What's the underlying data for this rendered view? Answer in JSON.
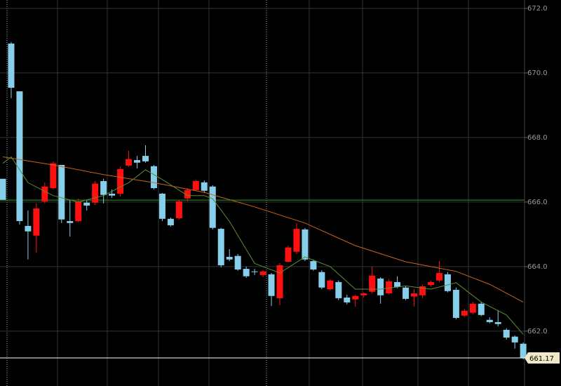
{
  "chart_data": {
    "type": "candlestick",
    "open": [
      666.72,
      670.91,
      669.43,
      665.26,
      664.96,
      666.02,
      666.43,
      667.15,
      665.41,
      665.41,
      665.98,
      665.98,
      666.65,
      666.26,
      666.26,
      667.13,
      667.3,
      667.43,
      667.11,
      666.26,
      665.48,
      665.5,
      666.11,
      666.37,
      666.61,
      666.48,
      665.17,
      664.3,
      664.33,
      663.93,
      663.85,
      663.74,
      663.76,
      663.02,
      664.15,
      664.46,
      665.15,
      664.17,
      663.83,
      663.3,
      663.52,
      663.04,
      662.98,
      663.11,
      663.22,
      663.63,
      663.17,
      663.52,
      663.35,
      663.07,
      663.11,
      663.43,
      663.57,
      663.76,
      663.28,
      662.48,
      662.57,
      662.85,
      662.35,
      662.28,
      662.04,
      661.83,
      661.61
    ],
    "high": [
      666.72,
      670.96,
      669.43,
      665.74,
      665.96,
      666.61,
      667.26,
      667.15,
      666.07,
      666.11,
      666.07,
      666.65,
      666.72,
      666.39,
      667.09,
      667.59,
      667.43,
      667.76,
      667.15,
      666.28,
      665.52,
      666.07,
      666.43,
      666.7,
      666.67,
      666.52,
      665.2,
      664.54,
      664.39,
      664.0,
      663.93,
      663.89,
      663.8,
      664.11,
      664.65,
      665.35,
      665.2,
      664.22,
      663.89,
      663.61,
      663.57,
      663.13,
      663.13,
      663.2,
      664.0,
      663.67,
      663.61,
      663.7,
      663.39,
      663.3,
      663.43,
      663.57,
      664.17,
      663.83,
      663.35,
      662.7,
      662.91,
      662.91,
      662.43,
      662.65,
      662.09,
      661.87,
      661.65
    ],
    "low": [
      666.07,
      669.22,
      665.3,
      664.22,
      664.43,
      665.96,
      666.39,
      665.35,
      664.93,
      665.37,
      665.74,
      665.91,
      665.96,
      666.13,
      666.17,
      667.09,
      667.04,
      667.22,
      666.39,
      665.41,
      665.24,
      665.46,
      666.02,
      666.35,
      666.28,
      665.15,
      663.98,
      664.17,
      663.87,
      663.65,
      663.74,
      663.67,
      662.78,
      662.8,
      664.15,
      664.39,
      664.17,
      663.87,
      663.3,
      663.26,
      662.96,
      662.83,
      662.76,
      663.04,
      663.17,
      662.85,
      663.13,
      663.33,
      662.96,
      662.76,
      663.02,
      663.37,
      663.52,
      663.2,
      662.37,
      662.43,
      662.52,
      662.46,
      662.24,
      662.15,
      661.74,
      661.46,
      661.13
    ],
    "close": [
      666.07,
      669.54,
      665.41,
      665.09,
      665.8,
      666.48,
      667.2,
      665.46,
      665.35,
      666.02,
      665.89,
      666.57,
      666.22,
      666.2,
      667.02,
      667.33,
      667.22,
      667.26,
      666.43,
      665.48,
      665.28,
      666.02,
      666.37,
      666.65,
      666.35,
      665.2,
      664.04,
      664.22,
      663.91,
      663.7,
      663.83,
      663.85,
      663.09,
      664.04,
      664.59,
      665.17,
      664.22,
      663.91,
      663.35,
      663.57,
      663.02,
      662.89,
      663.09,
      663.17,
      663.72,
      663.11,
      663.54,
      663.37,
      663.0,
      663.17,
      663.39,
      663.52,
      663.8,
      663.24,
      662.41,
      662.63,
      662.85,
      662.5,
      662.28,
      662.22,
      661.8,
      661.65,
      661.17
    ],
    "up_color": "#ff1010",
    "down_color": "#87ceeb",
    "moving_averages": [
      {
        "color": "#c8641e",
        "x": [
          0,
          6,
          12,
          18,
          24,
          30,
          36,
          42,
          48,
          54,
          58,
          62
        ],
        "values": [
          667.4,
          667.15,
          666.85,
          666.6,
          666.3,
          665.85,
          665.35,
          664.65,
          664.15,
          663.85,
          663.45,
          662.9
        ]
      },
      {
        "color": "#5a8f32",
        "x": [
          0,
          1,
          3,
          6,
          9,
          12,
          15,
          17,
          19,
          22,
          24,
          25,
          27,
          30,
          33,
          36,
          39,
          42,
          45,
          48,
          51,
          54,
          57,
          60,
          62
        ],
        "values": [
          667.2,
          667.4,
          666.6,
          666.2,
          666.0,
          666.2,
          666.6,
          667.0,
          666.7,
          666.2,
          666.2,
          666.1,
          665.4,
          664.1,
          663.8,
          664.3,
          664.0,
          663.3,
          663.3,
          663.4,
          663.3,
          663.5,
          662.9,
          662.5,
          661.9
        ]
      }
    ],
    "reference_line": {
      "value": 666.06,
      "color": "#22a022"
    },
    "last_price": 661.17,
    "ylim": [
      660.3,
      672.26
    ],
    "yticks": [
      {
        "value": 662,
        "label": "662.0"
      },
      {
        "value": 664,
        "label": "664.0"
      },
      {
        "value": 666,
        "label": "666.0"
      },
      {
        "value": 668,
        "label": "668.0"
      },
      {
        "value": 670,
        "label": "670.0"
      },
      {
        "value": 672,
        "label": "672.0"
      }
    ],
    "grid": true
  }
}
